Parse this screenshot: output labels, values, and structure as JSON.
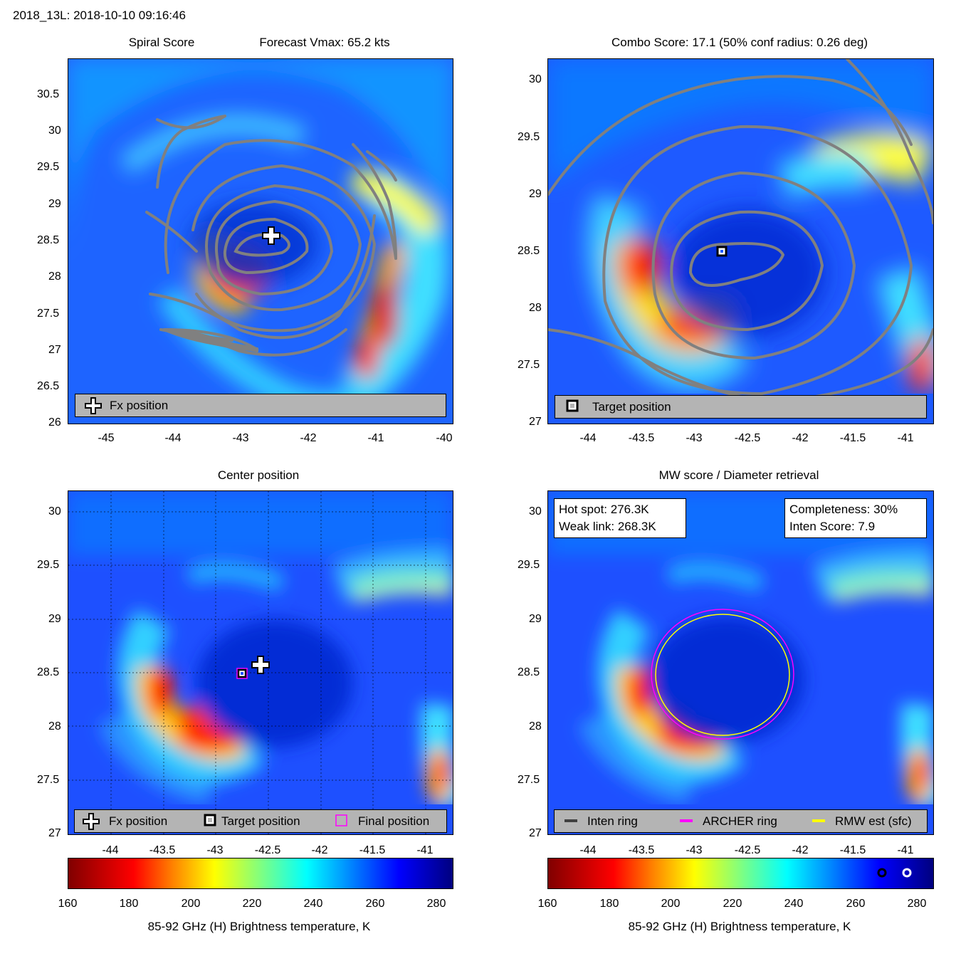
{
  "header": {
    "title": "2018_13L: 2018-10-10 09:16:46"
  },
  "panels": {
    "spiral": {
      "title_left": "Spiral Score",
      "title_right": "Forecast Vmax: 65.2 kts",
      "legend": {
        "fx": "Fx position"
      }
    },
    "combo": {
      "title": "Combo Score: 17.1  (50% conf radius: 0.26 deg)",
      "legend": {
        "target": "Target position"
      }
    },
    "center": {
      "title": "Center position",
      "legend": {
        "fx": "Fx position",
        "target": "Target position",
        "final": "Final position"
      }
    },
    "mw": {
      "title": "MW score / Diameter retrieval",
      "info_left": {
        "hot_spot": "Hot spot: 276.3K",
        "weak_link": "Weak link: 268.3K"
      },
      "info_right": {
        "completeness": "Completeness: 30%",
        "inten_score": "Inten Score: 7.9"
      },
      "legend": {
        "inten": "Inten ring",
        "archer": "ARCHER ring",
        "rmw": "RMW est (sfc)"
      }
    }
  },
  "colors": {
    "contour": "#808080",
    "archer": "#ff00ff",
    "rmw": "#ffff00",
    "inten": "#404040"
  },
  "chart_data": [
    {
      "type": "heatmap",
      "name": "Spiral Score",
      "xlim": [
        -45.5,
        -40
      ],
      "ylim": [
        26,
        31
      ],
      "xticks": [
        "-45",
        "-44",
        "-43",
        "-42",
        "-41",
        "-40"
      ],
      "yticks": [
        "26",
        "26.5",
        "27",
        "27.5",
        "28",
        "28.5",
        "29",
        "29.5",
        "30",
        "30.5"
      ],
      "fx_position": {
        "lon": -42.55,
        "lat": 28.6
      }
    },
    {
      "type": "heatmap",
      "name": "Combo Score",
      "xlim": [
        -44.4,
        -40.75
      ],
      "ylim": [
        27,
        30.2
      ],
      "xticks": [
        "-44",
        "-43.5",
        "-43",
        "-42.5",
        "-42",
        "-41.5",
        "-41"
      ],
      "yticks": [
        "27",
        "27.5",
        "28",
        "28.5",
        "29",
        "29.5",
        "30"
      ],
      "target_position": {
        "lon": -42.75,
        "lat": 28.5
      }
    },
    {
      "type": "heatmap",
      "name": "Center position",
      "xlim": [
        -44.4,
        -40.75
      ],
      "ylim": [
        27,
        30.2
      ],
      "xticks": [
        "-44",
        "-43.5",
        "-43",
        "-42.5",
        "-42",
        "-41.5",
        "-41"
      ],
      "yticks": [
        "27",
        "27.5",
        "28",
        "28.5",
        "29",
        "29.5",
        "30"
      ],
      "fx_position": {
        "lon": -42.55,
        "lat": 28.6
      },
      "target_position": {
        "lon": -42.75,
        "lat": 28.5
      },
      "final_position": {
        "lon": -42.75,
        "lat": 28.5
      }
    },
    {
      "type": "heatmap",
      "name": "MW score / Diameter retrieval",
      "xlim": [
        -44.4,
        -40.75
      ],
      "ylim": [
        27,
        30.2
      ],
      "xticks": [
        "-44",
        "-43.5",
        "-43",
        "-42.5",
        "-42",
        "-41.5",
        "-41"
      ],
      "yticks": [
        "27",
        "27.5",
        "28",
        "28.5",
        "29",
        "29.5",
        "30"
      ],
      "archer_ring": {
        "center_lon": -42.65,
        "center_lat": 28.48,
        "radius_deg": 0.6
      },
      "rmw_ring": {
        "center_lon": -42.65,
        "center_lat": 28.47,
        "radius_deg": 0.57
      }
    },
    {
      "type": "colorbar",
      "name": "colorbar-left",
      "range": [
        160,
        285
      ],
      "ticks": [
        "160",
        "180",
        "200",
        "220",
        "240",
        "260",
        "280"
      ],
      "label": "85-92 GHz (H) Brightness temperature, K"
    },
    {
      "type": "colorbar",
      "name": "colorbar-right",
      "range": [
        160,
        285
      ],
      "ticks": [
        "160",
        "180",
        "200",
        "220",
        "240",
        "260",
        "280"
      ],
      "label": "85-92 GHz (H) Brightness temperature, K",
      "markers": {
        "weak_link_k": 268.3,
        "hot_spot_k": 276.3
      }
    }
  ]
}
